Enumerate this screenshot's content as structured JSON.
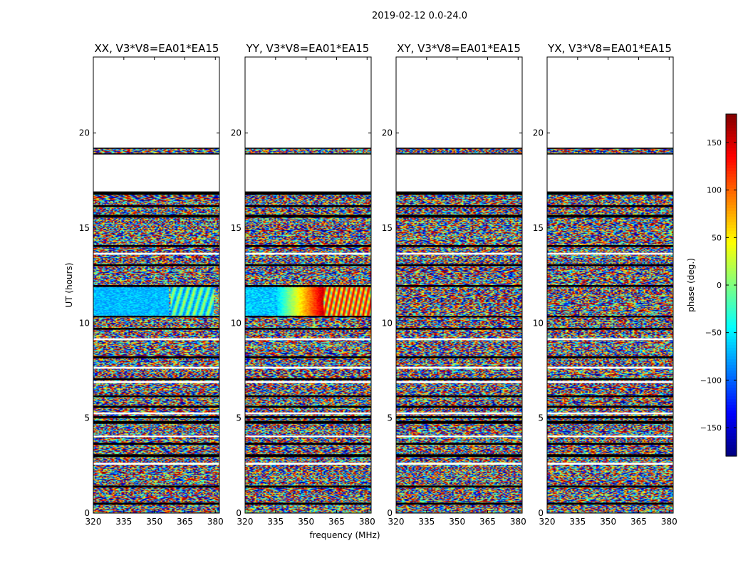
{
  "chart_data": {
    "type": "heatmap",
    "suptitle": "2019-02-12 0.0-24.0",
    "xlabel": "frequency (MHz)",
    "ylabel": "UT (hours)",
    "xlim": [
      320,
      382
    ],
    "ylim": [
      0,
      24
    ],
    "xticks": [
      320,
      335,
      350,
      365,
      380
    ],
    "yticks": [
      0,
      5,
      10,
      15,
      20
    ],
    "colorbar": {
      "label": "phase (deg.)",
      "range": [
        -180,
        180
      ],
      "ticks": [
        150,
        100,
        50,
        0,
        -50,
        -100,
        -150
      ],
      "ticklabels": [
        "150",
        "100",
        "50",
        "0",
        "−50",
        "−100",
        "−150"
      ],
      "colormap": "jet"
    },
    "panels": [
      {
        "title": "XX, V3*V8=EA01*EA15",
        "feature": "blue_band"
      },
      {
        "title": "YY, V3*V8=EA01*EA15",
        "feature": "gradient_band"
      },
      {
        "title": "XY, V3*V8=EA01*EA15",
        "feature": "stripes"
      },
      {
        "title": "YX, V3*V8=EA01*EA15",
        "feature": "stripes"
      }
    ],
    "data_rows_hours": [
      [
        0.0,
        16.9
      ],
      [
        18.9,
        19.2
      ]
    ],
    "flagged_rows_hours": [
      [
        0.45,
        0.55
      ],
      [
        1.35,
        1.45
      ],
      [
        2.95,
        3.1
      ],
      [
        3.6,
        3.7
      ],
      [
        4.7,
        4.85
      ],
      [
        5.0,
        5.1
      ],
      [
        5.55,
        5.65
      ],
      [
        6.1,
        6.2
      ],
      [
        7.0,
        7.1
      ],
      [
        8.15,
        8.25
      ],
      [
        9.65,
        9.75
      ],
      [
        10.3,
        10.38
      ],
      [
        11.9,
        12.0
      ],
      [
        13.0,
        13.1
      ],
      [
        14.0,
        14.1
      ],
      [
        15.55,
        15.7
      ],
      [
        16.1,
        16.2
      ],
      [
        16.75,
        16.9
      ]
    ],
    "white_rows_hours": [
      [
        2.55,
        2.65
      ],
      [
        4.0,
        4.08
      ],
      [
        5.2,
        5.3
      ],
      [
        6.85,
        6.95
      ],
      [
        7.6,
        7.7
      ],
      [
        9.1,
        9.2
      ],
      [
        13.6,
        13.7
      ]
    ]
  }
}
